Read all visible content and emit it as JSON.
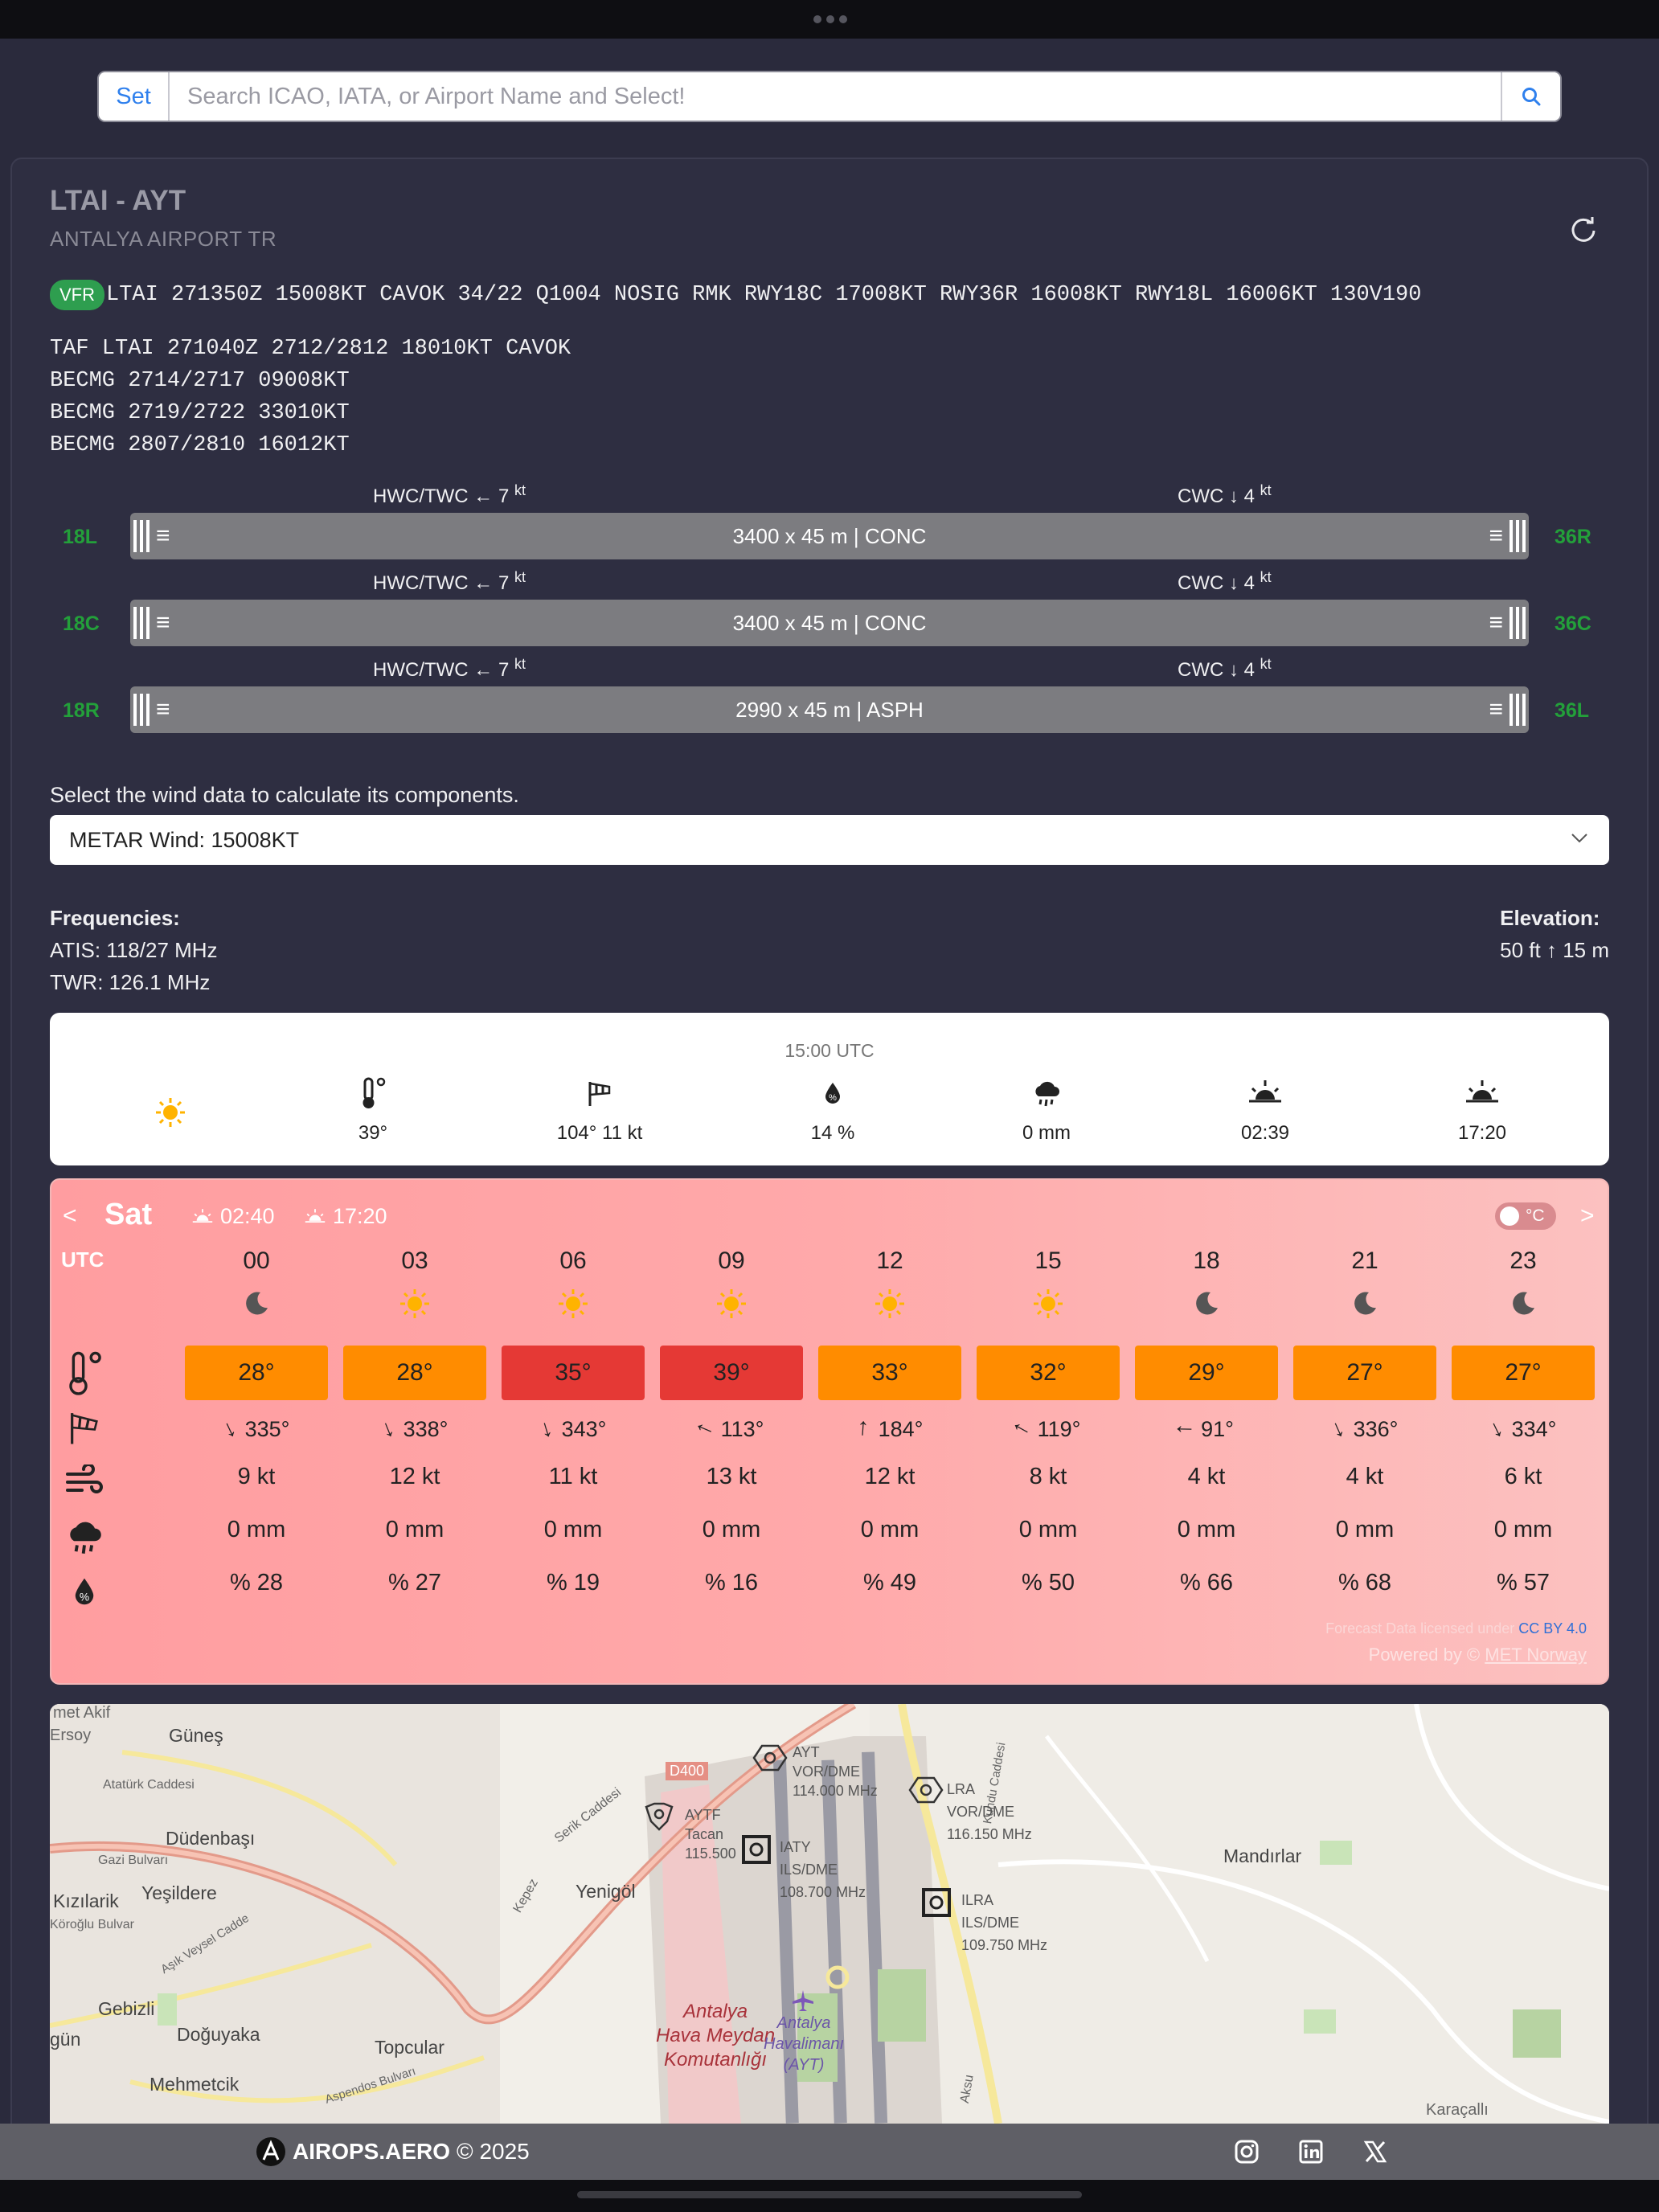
{
  "search": {
    "set_label": "Set",
    "placeholder": "Search ICAO, IATA, or Airport Name and Select!"
  },
  "airport": {
    "title": "LTAI - AYT",
    "subtitle": "ANTALYA AIRPORT TR"
  },
  "metar": {
    "category": "VFR",
    "text": "LTAI 271350Z 15008KT CAVOK 34/22 Q1004 NOSIG RMK RWY18C 17008KT RWY36R 16008KT RWY18L 16006KT 130V190"
  },
  "taf": [
    "TAF LTAI 271040Z 2712/2812 18010KT CAVOK",
    "BECMG 2714/2717 09008KT",
    "BECMG 2719/2722 33010KT",
    "BECMG 2807/2810 16012KT"
  ],
  "runways": [
    {
      "left": "18L",
      "right": "36R",
      "info": "3400 x 45 m | CONC",
      "hwc": "HWC/TWC ← 7",
      "cwc": "CWC ↓ 4",
      "unit": "kt"
    },
    {
      "left": "18C",
      "right": "36C",
      "info": "3400 x 45 m | CONC",
      "hwc": "HWC/TWC ← 7",
      "cwc": "CWC ↓ 4",
      "unit": "kt"
    },
    {
      "left": "18R",
      "right": "36L",
      "info": "2990 x 45 m | ASPH",
      "hwc": "HWC/TWC ← 7",
      "cwc": "CWC ↓ 4",
      "unit": "kt"
    }
  ],
  "wind_select": {
    "label": "Select the wind data to calculate its components.",
    "value": "METAR Wind: 15008KT"
  },
  "frequencies": {
    "heading": "Frequencies:",
    "atis": "ATIS: 118/27 MHz",
    "twr": "TWR: 126.1 MHz"
  },
  "elevation": {
    "heading": "Elevation:",
    "value": "50 ft ↑ 15 m"
  },
  "current": {
    "time": "15:00 UTC",
    "temp": "39°",
    "wind": "104° 11 kt",
    "humidity": "14 %",
    "precip": "0 mm",
    "sunrise": "02:39",
    "sunset": "17:20"
  },
  "forecast": {
    "day": "Sat",
    "sunrise": "02:40",
    "sunset": "17:20",
    "unit_toggle": "°C",
    "utc_label": "UTC",
    "hours": [
      {
        "hour": "00",
        "wx": "moon",
        "temp": "28°",
        "temp_color": "#ff8c00",
        "dir": "335°",
        "dir_deg": 335,
        "speed": "9 kt",
        "precip": "0 mm",
        "humidity": "% 28"
      },
      {
        "hour": "03",
        "wx": "sun",
        "temp": "28°",
        "temp_color": "#ff8c00",
        "dir": "338°",
        "dir_deg": 338,
        "speed": "12 kt",
        "precip": "0 mm",
        "humidity": "% 27"
      },
      {
        "hour": "06",
        "wx": "sun",
        "temp": "35°",
        "temp_color": "#e53935",
        "dir": "343°",
        "dir_deg": 343,
        "speed": "11 kt",
        "precip": "0 mm",
        "humidity": "% 19"
      },
      {
        "hour": "09",
        "wx": "sun",
        "temp": "39°",
        "temp_color": "#e53935",
        "dir": "113°",
        "dir_deg": 113,
        "speed": "13 kt",
        "precip": "0 mm",
        "humidity": "% 16"
      },
      {
        "hour": "12",
        "wx": "sun",
        "temp": "33°",
        "temp_color": "#ff8c00",
        "dir": "184°",
        "dir_deg": 184,
        "speed": "12 kt",
        "precip": "0 mm",
        "humidity": "% 49"
      },
      {
        "hour": "15",
        "wx": "sun",
        "temp": "32°",
        "temp_color": "#ff8c00",
        "dir": "119°",
        "dir_deg": 119,
        "speed": "8 kt",
        "precip": "0 mm",
        "humidity": "% 50"
      },
      {
        "hour": "18",
        "wx": "moon",
        "temp": "29°",
        "temp_color": "#ff8c00",
        "dir": "91°",
        "dir_deg": 91,
        "speed": "4 kt",
        "precip": "0 mm",
        "humidity": "% 66"
      },
      {
        "hour": "21",
        "wx": "moon",
        "temp": "27°",
        "temp_color": "#ff8c00",
        "dir": "336°",
        "dir_deg": 336,
        "speed": "4 kt",
        "precip": "0 mm",
        "humidity": "% 68"
      },
      {
        "hour": "23",
        "wx": "moon",
        "temp": "27°",
        "temp_color": "#ff8c00",
        "dir": "334°",
        "dir_deg": 334,
        "speed": "6 kt",
        "precip": "0 mm",
        "humidity": "% 57"
      }
    ],
    "license_text": "Forecast Data licensed under",
    "license_link": "CC BY 4.0",
    "powered_text": "Powered by ©",
    "powered_link": "MET Norway"
  },
  "map": {
    "labels": [
      "met Akif",
      "Ersoy",
      "Güneş",
      "Atatürk Caddesi",
      "Düdenbaşı",
      "Gazi Bulvarı",
      "Yeşildere",
      "Kızılarik",
      "Köroğlu Bulvar",
      "Aşık Veysel Cadde",
      "Gebizli",
      "gün",
      "Doğuyaka",
      "Topcular",
      "Mehmetcik",
      "Aspendos Bulvarı",
      "Yenigöl",
      "Serik Caddesi",
      "Kepez",
      "D400",
      "Mandırlar",
      "Karaçallı",
      "Aksu",
      "Kundu Caddesi"
    ],
    "navaids": [
      {
        "id": "AYT",
        "type": "VOR/DME",
        "freq": "114.000 MHz"
      },
      {
        "id": "AYTF",
        "type": "Tacan",
        "freq": "115.500"
      },
      {
        "id": "IATY",
        "type": "ILS/DME",
        "freq": "108.700 MHz"
      },
      {
        "id": "LRA",
        "type": "VOR/DME",
        "freq": "116.150 MHz"
      },
      {
        "id": "ILRA",
        "type": "ILS/DME",
        "freq": "109.750 MHz"
      }
    ],
    "airbase_label": [
      "Antalya",
      "Hava Meydan",
      "Komutanlığı"
    ],
    "airport_label": [
      "Antalya",
      "Havalimanı",
      "(AYT)"
    ]
  },
  "footer": {
    "brand": "AIROPS.AERO",
    "copyright": "© 2025",
    "social": [
      "instagram-icon",
      "linkedin-icon",
      "x-icon"
    ]
  },
  "colors": {
    "bg": "#2a2a3c",
    "accent": "#2f80ed",
    "vfr": "#2e9e4f",
    "runway_label": "#23a03a",
    "hot": "#e53935",
    "warm": "#ff8c00"
  }
}
